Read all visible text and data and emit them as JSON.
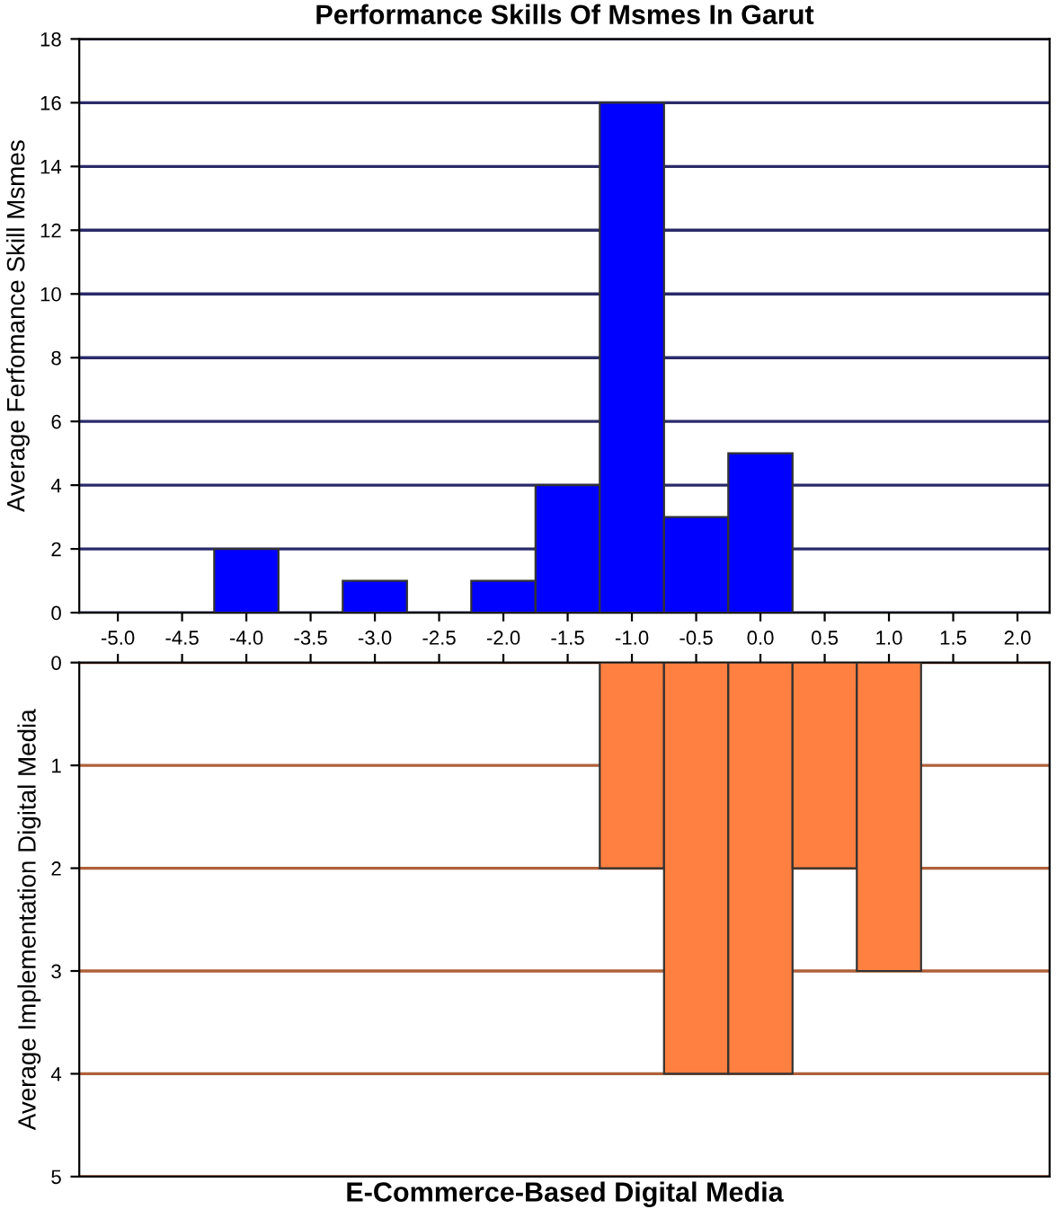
{
  "chart_data": [
    {
      "type": "histogram",
      "title": "Performance Skills Of Msmes In Garut",
      "ylabel": "Average Ferfomance Skill Msmes",
      "bins": [
        -4.25,
        -3.75,
        -3.25,
        -2.75,
        -2.25,
        -1.75,
        -1.25,
        -0.75,
        -0.25,
        0.25
      ],
      "values": [
        2,
        0,
        1,
        0,
        1,
        4,
        16,
        3,
        5
      ],
      "color": "#0000ff",
      "xlim": [
        -5.3,
        2.25
      ],
      "xticks": [
        {
          "value": -5,
          "label": "-5.0"
        },
        {
          "value": -4.5,
          "label": "-4.5"
        },
        {
          "value": -4,
          "label": "-4.0"
        },
        {
          "value": -3.5,
          "label": "-3.5"
        },
        {
          "value": -3,
          "label": "-3.0"
        },
        {
          "value": -2.5,
          "label": "-2.5"
        },
        {
          "value": -2,
          "label": "-2.0"
        },
        {
          "value": -1.5,
          "label": "-1.5"
        },
        {
          "value": -1,
          "label": "-1.0"
        },
        {
          "value": -0.5,
          "label": "-0.5"
        },
        {
          "value": 0,
          "label": "0.0"
        },
        {
          "value": 0.5,
          "label": "0.5"
        },
        {
          "value": 1,
          "label": "1.0"
        },
        {
          "value": 1.5,
          "label": "1.5"
        },
        {
          "value": 2,
          "label": "2.0"
        }
      ],
      "ylim": [
        0,
        18
      ],
      "yticks": [
        0,
        2,
        4,
        6,
        8,
        10,
        12,
        14,
        16,
        18
      ],
      "grid": "y"
    },
    {
      "type": "histogram",
      "xlabel": "E-Commerce-Based Digital Media",
      "ylabel": "Average Implementation Digital Media",
      "bins": [
        -1.25,
        -0.75,
        -0.25,
        0.25,
        0.75,
        1.25
      ],
      "values": [
        2,
        4,
        4,
        2,
        3
      ],
      "color": "#ff8040",
      "xlim": [
        -5.3,
        2.25
      ],
      "xticks": [
        {
          "value": -5,
          "label": null
        },
        {
          "value": -4.5,
          "label": null
        },
        {
          "value": -4,
          "label": null
        },
        {
          "value": -3.5,
          "label": null
        },
        {
          "value": -3,
          "label": null
        },
        {
          "value": -2.5,
          "label": null
        },
        {
          "value": -2,
          "label": null
        },
        {
          "value": -1.5,
          "label": null
        },
        {
          "value": -1,
          "label": null
        },
        {
          "value": -0.5,
          "label": null
        },
        {
          "value": 0,
          "label": null
        },
        {
          "value": 0.5,
          "label": null
        },
        {
          "value": 1,
          "label": null
        },
        {
          "value": 1.5,
          "label": null
        },
        {
          "value": 2,
          "label": null
        }
      ],
      "ylim": [
        5,
        0
      ],
      "yticks": [
        0,
        1,
        2,
        3,
        4,
        5
      ],
      "grid": "y",
      "tick_labels": "y"
    }
  ]
}
